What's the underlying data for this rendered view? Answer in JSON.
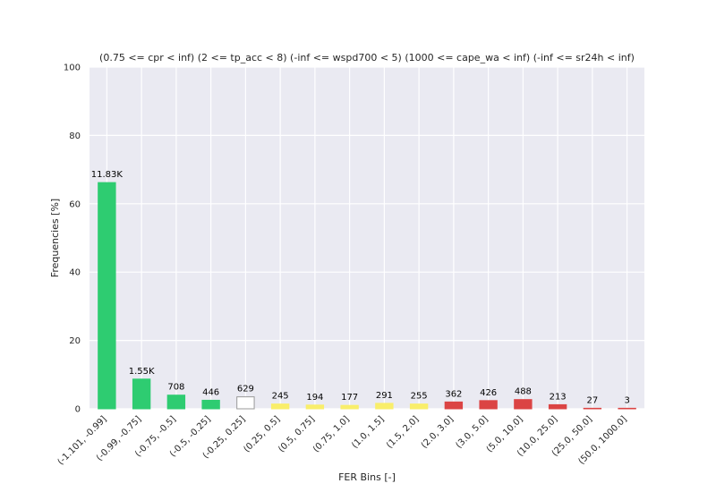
{
  "chart_data": {
    "type": "bar",
    "title": "(0.75 <= cpr < inf) (2 <= tp_acc < 8) (-inf <= wspd700 < 5) (1000 <= cape_wa < inf) (-inf <= sr24h < inf)",
    "xlabel": "FER Bins [-]",
    "ylabel": "Frequencies [%]",
    "ylim": [
      0,
      100
    ],
    "yticks": [
      "0",
      "20",
      "40",
      "60",
      "80",
      "100"
    ],
    "grid": true,
    "categories": [
      "(-1.101, -0.99]",
      "(-0.99, -0.75]",
      "(-0.75, -0.5]",
      "(-0.5, -0.25]",
      "(-0.25, 0.25]",
      "(0.25, 0.5]",
      "(0.5, 0.75]",
      "(0.75, 1.0]",
      "(1.0, 1.5]",
      "(1.5, 2.0]",
      "(2.0, 3.0]",
      "(3.0, 5.0]",
      "(5.0, 10.0]",
      "(10.0, 25.0]",
      "(25.0, 50.0]",
      "(50.0, 1000.0]"
    ],
    "values": [
      66.2,
      8.7,
      4.0,
      2.5,
      3.5,
      1.4,
      1.1,
      1.0,
      1.6,
      1.4,
      2.0,
      2.4,
      2.7,
      1.2,
      0.15,
      0.02
    ],
    "bar_labels": [
      "11.83K",
      "1.55K",
      "708",
      "446",
      "629",
      "245",
      "194",
      "177",
      "291",
      "255",
      "362",
      "426",
      "488",
      "213",
      "27",
      "3"
    ],
    "bar_colors": [
      "#2ecc71",
      "#2ecc71",
      "#2ecc71",
      "#2ecc71",
      "#ffffff",
      "#f9ee6b",
      "#f9ee6b",
      "#f9ee6b",
      "#f9ee6b",
      "#f9ee6b",
      "#db4444",
      "#db4444",
      "#db4444",
      "#db4444",
      "#db4444",
      "#db4444"
    ],
    "bar_edge_colors": [
      "#2ecc71",
      "#2ecc71",
      "#2ecc71",
      "#2ecc71",
      "#999999",
      "#f9ee6b",
      "#f9ee6b",
      "#f9ee6b",
      "#f9ee6b",
      "#f9ee6b",
      "#db4444",
      "#db4444",
      "#db4444",
      "#db4444",
      "#db4444",
      "#db4444"
    ],
    "plot_background": "#eaeaf2",
    "grid_color": "#ffffff"
  }
}
